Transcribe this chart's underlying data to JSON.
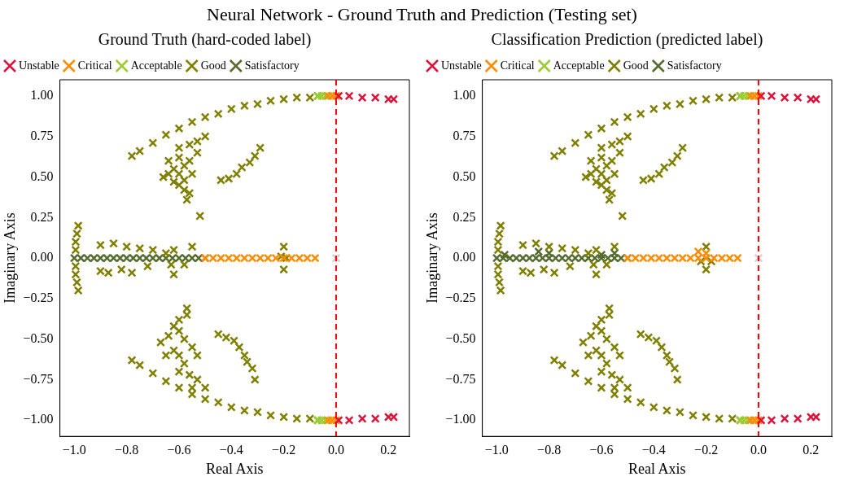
{
  "chart_data": [
    {
      "type": "scatter",
      "title": "Ground Truth (hard-coded label)",
      "annotations": [
        "Neural Network - Ground Truth and Prediction (Testing set)"
      ],
      "xlabel": "Real Axis",
      "ylabel": "Imaginary Axis",
      "xlim": [
        -1.055,
        0.28
      ],
      "ylim": [
        -1.1,
        1.1
      ],
      "xticks": [
        {
          "value": -1.0,
          "label": "−1.0"
        },
        {
          "value": -0.8,
          "label": "−0.8"
        },
        {
          "value": -0.6,
          "label": "−0.6"
        },
        {
          "value": -0.4,
          "label": "−0.4"
        },
        {
          "value": -0.2,
          "label": "−0.2"
        },
        {
          "value": 0,
          "label": "0.0"
        },
        {
          "value": 0.2,
          "label": "0.2"
        }
      ],
      "yticks": [
        {
          "value": -1,
          "label": "−1.00"
        },
        {
          "value": -0.75,
          "label": "−0.75"
        },
        {
          "value": -0.5,
          "label": "−0.50"
        },
        {
          "value": -0.25,
          "label": "−0.25"
        },
        {
          "value": 0,
          "label": "0.00"
        },
        {
          "value": 0.25,
          "label": "0.25"
        },
        {
          "value": 0.5,
          "label": "0.50"
        },
        {
          "value": 0.75,
          "label": "0.75"
        },
        {
          "value": 1,
          "label": "1.00"
        }
      ],
      "marker": "cross",
      "legend": "top left",
      "ref_lines": [
        {
          "axis": "x",
          "value": 0,
          "color": "#ff0000",
          "line_style": "dashed"
        }
      ],
      "series": [
        {
          "name": "Unstable",
          "color": "#dc143c",
          "x": [
            0.01,
            0.05,
            0.1,
            0.15,
            0.2,
            0.22,
            0.01,
            0.05,
            0.1,
            0.15,
            0.2,
            0.22
          ],
          "values": [
            1.0,
            1.0,
            0.99,
            0.99,
            0.98,
            0.98,
            -1.0,
            -1.0,
            -0.99,
            -0.99,
            -0.98,
            -0.98
          ]
        },
        {
          "name": "Critical",
          "color": "#ff8c00",
          "x": [
            -0.03,
            -0.015,
            0,
            -0.03,
            -0.015,
            0,
            -0.5,
            -0.47,
            -0.44,
            -0.41,
            -0.38,
            -0.35,
            -0.32,
            -0.29,
            -0.26,
            -0.23,
            -0.2,
            -0.17,
            -0.14,
            -0.11,
            -0.08
          ],
          "values": [
            1.0,
            1.0,
            1.0,
            -1.0,
            -1.0,
            -1.0,
            0,
            0,
            0,
            0,
            0,
            0,
            0,
            0,
            0,
            0,
            0,
            0,
            0,
            0,
            0
          ]
        },
        {
          "name": "Acceptable",
          "color": "#9acd32",
          "x": [
            -0.07,
            -0.055,
            -0.04,
            -0.07,
            -0.055,
            -0.04
          ],
          "values": [
            1.0,
            1.0,
            1.0,
            -1.0,
            -1.0,
            -1.0
          ]
        },
        {
          "name": "Good",
          "color": "#808000",
          "x": [
            -0.78,
            -0.75,
            -0.7,
            -0.65,
            -0.6,
            -0.55,
            -0.5,
            -0.45,
            -0.4,
            -0.35,
            -0.3,
            -0.25,
            -0.2,
            -0.15,
            -0.1,
            -0.07,
            -0.78,
            -0.75,
            -0.7,
            -0.65,
            -0.6,
            -0.55,
            -0.5,
            -0.45,
            -0.4,
            -0.35,
            -0.3,
            -0.25,
            -0.2,
            -0.15,
            -0.1,
            -0.07,
            -0.66,
            -0.64,
            -0.62,
            -0.6,
            -0.6,
            -0.58,
            -0.56,
            -0.55,
            -0.58,
            -0.62,
            -0.64,
            -0.6,
            -0.58,
            -0.56,
            -0.57,
            -0.52,
            -0.56,
            -0.53,
            -0.5,
            -0.6,
            -0.53,
            -0.44,
            -0.41,
            -0.38,
            -0.36,
            -0.33,
            -0.31,
            -0.29,
            -0.67,
            -0.64,
            -0.62,
            -0.6,
            -0.58,
            -0.55,
            -0.6,
            -0.58,
            -0.62,
            -0.65,
            -0.57,
            -0.57,
            -0.6,
            -0.56,
            -0.53,
            -0.5,
            -0.55,
            -0.6,
            -0.53,
            -0.45,
            -0.42,
            -0.39,
            -0.37,
            -0.35,
            -0.34,
            -0.32,
            -0.31,
            -0.985,
            -0.99,
            -0.995,
            -0.995,
            -0.995,
            -0.995,
            -0.99,
            -0.985,
            -0.9,
            -0.85,
            -0.8,
            -0.75,
            -0.7,
            -0.65,
            -0.55,
            -0.62,
            -0.9,
            -0.87,
            -0.82,
            -0.78,
            -0.72,
            -0.63,
            -0.62,
            -0.58,
            -0.2,
            -0.2,
            -0.21,
            -0.19
          ],
          "values": [
            0.63,
            0.66,
            0.71,
            0.76,
            0.8,
            0.84,
            0.87,
            0.89,
            0.92,
            0.94,
            0.95,
            0.97,
            0.98,
            0.99,
            0.99,
            1.0,
            -0.63,
            -0.66,
            -0.71,
            -0.76,
            -0.8,
            -0.84,
            -0.87,
            -0.89,
            -0.92,
            -0.94,
            -0.95,
            -0.97,
            -0.98,
            -0.99,
            -0.99,
            -1.0,
            0.5,
            0.6,
            0.55,
            0.52,
            0.62,
            0.57,
            0.6,
            0.52,
            0.48,
            0.47,
            0.52,
            0.45,
            0.42,
            0.4,
            0.36,
            0.26,
            0.7,
            0.72,
            0.75,
            0.68,
            0.65,
            0.48,
            0.49,
            0.52,
            0.56,
            0.59,
            0.63,
            0.68,
            -0.52,
            -0.48,
            -0.42,
            -0.45,
            -0.5,
            -0.55,
            -0.6,
            -0.65,
            -0.57,
            -0.6,
            -0.31,
            -0.35,
            -0.38,
            -0.72,
            -0.75,
            -0.8,
            -0.8,
            -0.7,
            -0.6,
            -0.47,
            -0.49,
            -0.51,
            -0.55,
            -0.6,
            -0.64,
            -0.68,
            -0.75,
            0.2,
            0.15,
            0.1,
            0.05,
            -0.05,
            -0.1,
            -0.15,
            -0.2,
            0.08,
            0.09,
            0.07,
            0.06,
            0.05,
            0.03,
            0.07,
            0.05,
            -0.08,
            -0.09,
            -0.07,
            -0.09,
            -0.05,
            -0.04,
            -0.1,
            -0.04,
            0.07,
            -0.07,
            0.01,
            0.0
          ]
        },
        {
          "name": "Satisfactory",
          "color": "#556b2f",
          "x": [
            -1.0,
            -0.975,
            -0.95,
            -0.925,
            -0.9,
            -0.875,
            -0.85,
            -0.825,
            -0.8,
            -0.775,
            -0.75,
            -0.725,
            -0.7,
            -0.675,
            -0.65,
            -0.625,
            -0.6,
            -0.575,
            -0.55,
            -0.525,
            -0.5
          ],
          "values": [
            0,
            0,
            0,
            0,
            0,
            0,
            0,
            0,
            0,
            0,
            0,
            0,
            0,
            0,
            0,
            0,
            0,
            0,
            0,
            0,
            0
          ]
        },
        {
          "color": "#d3d3d3",
          "x": [
            0
          ],
          "values": [
            0
          ]
        }
      ]
    },
    {
      "type": "scatter",
      "title": "Classification Prediction (predicted label)",
      "xlabel": "Real Axis",
      "ylabel": "Imaginary Axis",
      "xlim": [
        -1.055,
        0.28
      ],
      "ylim": [
        -1.1,
        1.1
      ],
      "xticks": [
        {
          "value": -1.0,
          "label": "−1.0"
        },
        {
          "value": -0.8,
          "label": "−0.8"
        },
        {
          "value": -0.6,
          "label": "−0.6"
        },
        {
          "value": -0.4,
          "label": "−0.4"
        },
        {
          "value": -0.2,
          "label": "−0.2"
        },
        {
          "value": 0,
          "label": "0.0"
        },
        {
          "value": 0.2,
          "label": "0.2"
        }
      ],
      "yticks": [
        {
          "value": -1,
          "label": "−1.00"
        },
        {
          "value": -0.75,
          "label": "−0.75"
        },
        {
          "value": -0.5,
          "label": "−0.50"
        },
        {
          "value": -0.25,
          "label": "−0.25"
        },
        {
          "value": 0,
          "label": "0.00"
        },
        {
          "value": 0.25,
          "label": "0.25"
        },
        {
          "value": 0.5,
          "label": "0.50"
        },
        {
          "value": 0.75,
          "label": "0.75"
        },
        {
          "value": 1,
          "label": "1.00"
        }
      ],
      "marker": "cross",
      "legend": "top left",
      "ref_lines": [
        {
          "axis": "x",
          "value": 0,
          "color": "#ff0000",
          "line_style": "dashed"
        }
      ],
      "series": [
        {
          "name": "Unstable",
          "color": "#dc143c",
          "x": [
            0.01,
            0.05,
            0.1,
            0.15,
            0.2,
            0.22,
            0.01,
            0.05,
            0.1,
            0.15,
            0.2,
            0.22
          ],
          "values": [
            1.0,
            1.0,
            0.99,
            0.99,
            0.98,
            0.98,
            -1.0,
            -1.0,
            -0.99,
            -0.99,
            -0.98,
            -0.98
          ]
        },
        {
          "name": "Critical",
          "color": "#ff8c00",
          "x": [
            -0.03,
            -0.015,
            0,
            -0.03,
            -0.015,
            0,
            -0.5,
            -0.47,
            -0.44,
            -0.41,
            -0.38,
            -0.35,
            -0.32,
            -0.29,
            -0.26,
            -0.23,
            -0.2,
            -0.17,
            -0.14,
            -0.11,
            -0.08,
            -0.2,
            -0.23
          ],
          "values": [
            1.0,
            1.0,
            1.0,
            -1.0,
            -1.0,
            -1.0,
            0,
            0,
            0,
            0,
            0,
            0,
            0,
            0,
            0,
            0,
            0,
            0,
            0,
            0,
            0,
            0.03,
            0.04
          ]
        },
        {
          "name": "Acceptable",
          "color": "#9acd32",
          "x": [
            -0.07,
            -0.055,
            -0.04,
            -0.07,
            -0.055,
            -0.04
          ],
          "values": [
            1.0,
            1.0,
            1.0,
            -1.0,
            -1.0,
            -1.0
          ]
        },
        {
          "name": "Good",
          "color": "#808000",
          "x": [
            -0.78,
            -0.75,
            -0.7,
            -0.65,
            -0.6,
            -0.55,
            -0.5,
            -0.45,
            -0.4,
            -0.35,
            -0.3,
            -0.25,
            -0.2,
            -0.15,
            -0.1,
            -0.07,
            -0.78,
            -0.75,
            -0.7,
            -0.65,
            -0.6,
            -0.55,
            -0.5,
            -0.45,
            -0.4,
            -0.35,
            -0.3,
            -0.25,
            -0.2,
            -0.15,
            -0.1,
            -0.07,
            -0.66,
            -0.64,
            -0.62,
            -0.6,
            -0.6,
            -0.58,
            -0.56,
            -0.55,
            -0.58,
            -0.62,
            -0.64,
            -0.6,
            -0.58,
            -0.56,
            -0.57,
            -0.52,
            -0.56,
            -0.53,
            -0.5,
            -0.6,
            -0.53,
            -0.44,
            -0.41,
            -0.38,
            -0.36,
            -0.33,
            -0.31,
            -0.29,
            -0.67,
            -0.64,
            -0.62,
            -0.6,
            -0.58,
            -0.55,
            -0.6,
            -0.58,
            -0.62,
            -0.65,
            -0.57,
            -0.57,
            -0.6,
            -0.56,
            -0.53,
            -0.5,
            -0.55,
            -0.6,
            -0.53,
            -0.45,
            -0.42,
            -0.39,
            -0.37,
            -0.35,
            -0.34,
            -0.32,
            -0.31,
            -0.985,
            -0.99,
            -0.995,
            -0.995,
            -0.995,
            -0.995,
            -0.99,
            -0.985,
            -0.9,
            -0.85,
            -0.8,
            -0.75,
            -0.7,
            -0.65,
            -0.55,
            -0.62,
            -0.9,
            -0.87,
            -0.82,
            -0.78,
            -0.72,
            -0.63,
            -0.62,
            -0.58,
            -0.2,
            -0.2,
            -0.22,
            -0.18
          ],
          "values": [
            0.63,
            0.66,
            0.71,
            0.76,
            0.8,
            0.84,
            0.87,
            0.89,
            0.92,
            0.94,
            0.95,
            0.97,
            0.98,
            0.99,
            0.99,
            1.0,
            -0.63,
            -0.66,
            -0.71,
            -0.76,
            -0.8,
            -0.84,
            -0.87,
            -0.89,
            -0.92,
            -0.94,
            -0.95,
            -0.97,
            -0.98,
            -0.99,
            -0.99,
            -1.0,
            0.5,
            0.6,
            0.55,
            0.52,
            0.62,
            0.57,
            0.6,
            0.52,
            0.48,
            0.47,
            0.52,
            0.45,
            0.42,
            0.4,
            0.36,
            0.26,
            0.7,
            0.72,
            0.75,
            0.68,
            0.65,
            0.48,
            0.49,
            0.52,
            0.56,
            0.59,
            0.63,
            0.68,
            -0.52,
            -0.48,
            -0.42,
            -0.45,
            -0.5,
            -0.55,
            -0.6,
            -0.65,
            -0.57,
            -0.6,
            -0.31,
            -0.35,
            -0.38,
            -0.72,
            -0.75,
            -0.8,
            -0.8,
            -0.7,
            -0.6,
            -0.47,
            -0.49,
            -0.51,
            -0.55,
            -0.6,
            -0.64,
            -0.68,
            -0.75,
            0.2,
            0.15,
            0.1,
            0.05,
            -0.05,
            -0.1,
            -0.15,
            -0.2,
            0.08,
            0.09,
            0.07,
            0.06,
            0.05,
            0.03,
            0.07,
            0.05,
            -0.08,
            -0.09,
            -0.07,
            -0.09,
            -0.05,
            -0.04,
            -0.1,
            -0.04,
            0.07,
            -0.07,
            -0.02,
            -0.02
          ]
        },
        {
          "name": "Satisfactory",
          "color": "#556b2f",
          "x": [
            -1.0,
            -0.975,
            -0.95,
            -0.925,
            -0.9,
            -0.875,
            -0.85,
            -0.825,
            -0.8,
            -0.775,
            -0.75,
            -0.725,
            -0.7,
            -0.675,
            -0.65,
            -0.625,
            -0.6,
            -0.575,
            -0.55,
            -0.525,
            -0.5,
            -0.84,
            -0.8,
            -0.6,
            -0.55,
            -0.97
          ],
          "values": [
            0,
            0,
            0,
            0,
            0,
            0,
            0,
            0,
            0,
            0,
            0,
            0,
            0,
            0,
            0,
            0,
            0,
            0,
            0,
            0,
            0,
            0.04,
            0.03,
            0.02,
            0.03,
            0.02
          ]
        },
        {
          "color": "#d3d3d3",
          "x": [
            0
          ],
          "values": [
            0
          ]
        }
      ]
    }
  ]
}
